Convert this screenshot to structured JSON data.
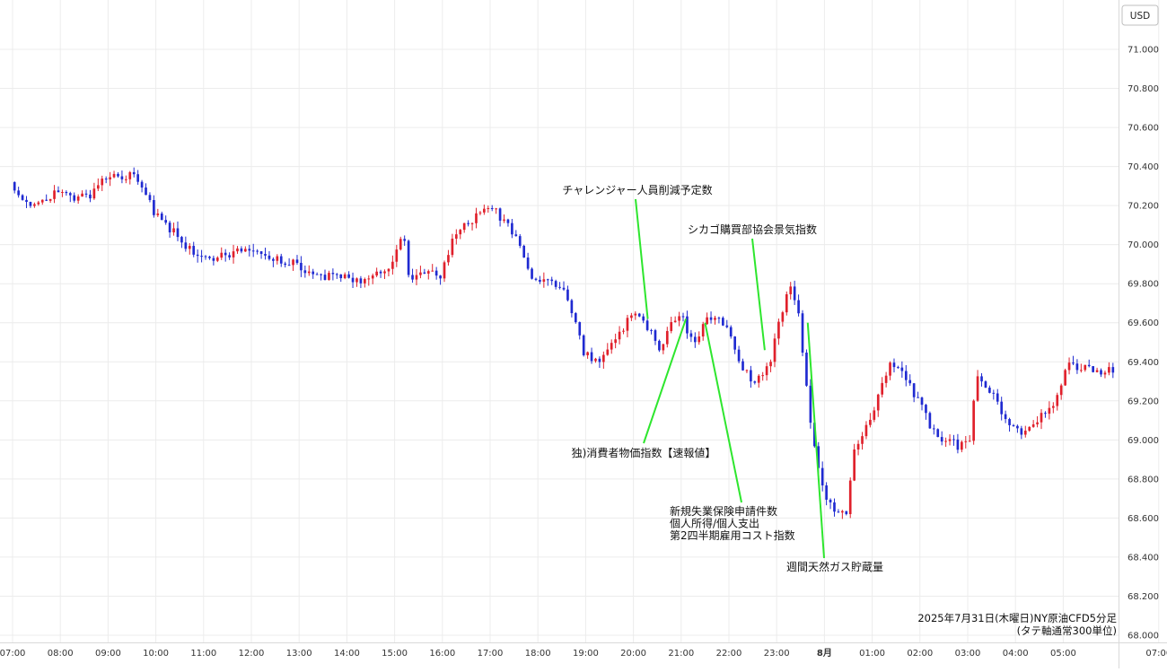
{
  "chart_data": {
    "type": "candlestick",
    "currency": "USD",
    "caption": [
      "2025年7月31日(木曜日)NY原油CFD5分足",
      "(タテ軸通常300単位)"
    ],
    "ylim": [
      68.0,
      71.2
    ],
    "y_ticks": [
      "71.000",
      "70.800",
      "70.600",
      "70.400",
      "70.200",
      "70.000",
      "69.800",
      "69.600",
      "69.400",
      "69.200",
      "69.000",
      "68.800",
      "68.600",
      "68.400",
      "68.200",
      "68.000"
    ],
    "x_ticks": [
      "07:00",
      "08:00",
      "09:00",
      "10:00",
      "11:00",
      "12:00",
      "13:00",
      "14:00",
      "15:00",
      "16:00",
      "17:00",
      "18:00",
      "19:00",
      "20:00",
      "21:00",
      "22:00",
      "23:00",
      "8月",
      "01:00",
      "02:00",
      "03:00",
      "04:00",
      "05:00",
      "07:00"
    ],
    "x_tick_hours": [
      0,
      1,
      2,
      3,
      4,
      5,
      6,
      7,
      8,
      9,
      10,
      11,
      12,
      13,
      14,
      15,
      16,
      17,
      18,
      19,
      20,
      21,
      22,
      24
    ],
    "bar_interval_minutes": 5,
    "x_start_hour": 0,
    "colors": {
      "up": "#e0202b",
      "down": "#1f2ad1",
      "annotation_line": "#2ee62e"
    },
    "anchor_prices": [
      [
        0,
        70.32
      ],
      [
        0.3,
        70.2
      ],
      [
        1.0,
        70.26
      ],
      [
        1.6,
        70.24
      ],
      [
        2.0,
        70.34
      ],
      [
        2.6,
        70.36
      ],
      [
        3.0,
        70.17
      ],
      [
        3.6,
        70.02
      ],
      [
        4.0,
        69.92
      ],
      [
        5.0,
        69.98
      ],
      [
        5.8,
        69.91
      ],
      [
        6.4,
        69.85
      ],
      [
        7.0,
        69.83
      ],
      [
        7.5,
        69.82
      ],
      [
        8.0,
        69.9
      ],
      [
        8.2,
        70.08
      ],
      [
        8.35,
        69.83
      ],
      [
        9.0,
        69.85
      ],
      [
        9.3,
        70.05
      ],
      [
        9.8,
        70.16
      ],
      [
        10.1,
        70.18
      ],
      [
        10.4,
        70.1
      ],
      [
        10.6,
        70.05
      ],
      [
        10.9,
        69.85
      ],
      [
        11.2,
        69.82
      ],
      [
        11.6,
        69.76
      ],
      [
        12.0,
        69.45
      ],
      [
        12.3,
        69.38
      ],
      [
        12.6,
        69.48
      ],
      [
        13.0,
        69.65
      ],
      [
        13.3,
        69.6
      ],
      [
        13.6,
        69.46
      ],
      [
        13.8,
        69.6
      ],
      [
        14.0,
        69.65
      ],
      [
        14.3,
        69.5
      ],
      [
        14.6,
        69.63
      ],
      [
        15.0,
        69.58
      ],
      [
        15.3,
        69.36
      ],
      [
        15.6,
        69.3
      ],
      [
        15.9,
        69.4
      ],
      [
        16.1,
        69.6
      ],
      [
        16.3,
        69.8
      ],
      [
        16.5,
        69.64
      ],
      [
        16.65,
        69.3
      ],
      [
        16.8,
        69.0
      ],
      [
        17.05,
        68.72
      ],
      [
        17.3,
        68.62
      ],
      [
        17.5,
        68.64
      ],
      [
        17.65,
        68.92
      ],
      [
        18.0,
        69.1
      ],
      [
        18.4,
        69.4
      ],
      [
        18.7,
        69.33
      ],
      [
        19.0,
        69.2
      ],
      [
        19.3,
        69.05
      ],
      [
        19.6,
        69.0
      ],
      [
        19.8,
        68.97
      ],
      [
        20.1,
        69.0
      ],
      [
        20.2,
        69.32
      ],
      [
        20.5,
        69.25
      ],
      [
        20.8,
        69.12
      ],
      [
        21.1,
        69.03
      ],
      [
        21.5,
        69.1
      ],
      [
        21.8,
        69.15
      ],
      [
        22.1,
        69.38
      ],
      [
        22.5,
        69.37
      ],
      [
        22.8,
        69.34
      ],
      [
        23.0,
        69.36
      ]
    ],
    "annotations": [
      {
        "label": "チャレンジャー人員削減予定数",
        "at_hour": 13.3,
        "at_price": 69.62
      },
      {
        "label": "シカゴ購買部協会景気指数",
        "at_hour": 15.75,
        "at_price": 69.46
      },
      {
        "label": "独)消費者物価指数【速報値】",
        "at_hour": 14.1,
        "at_price": 69.62
      },
      {
        "label": "新規失業保険申請件数\n個人所得/個人支出\n第2四半期雇用コスト指数",
        "at_hour": 14.5,
        "at_price": 69.6
      },
      {
        "label": "週間天然ガス貯蔵量",
        "at_hour": 16.65,
        "at_price": 69.6
      }
    ]
  }
}
